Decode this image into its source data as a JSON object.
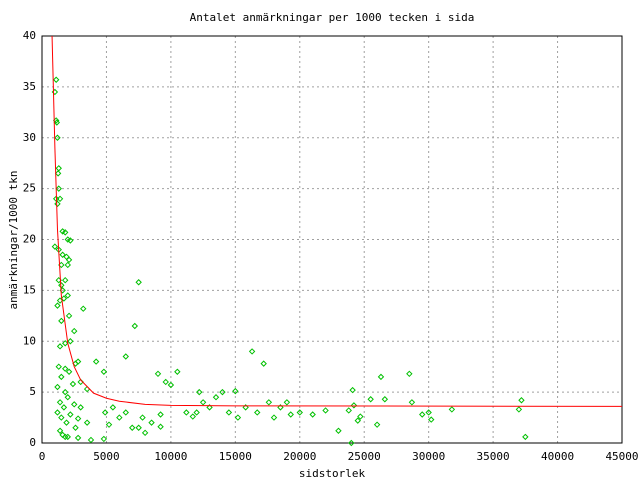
{
  "chart_data": {
    "type": "scatter",
    "title": "Antalet anmärkningar per 1000 tecken i sida",
    "x_label": "sidstorlek",
    "y_label": "anmärkningar/1000 tkn",
    "xlim": [
      0,
      45000
    ],
    "ylim": [
      0,
      40
    ],
    "xticks": [
      0,
      5000,
      10000,
      15000,
      20000,
      25000,
      30000,
      35000,
      40000,
      45000
    ],
    "yticks": [
      0,
      5,
      10,
      15,
      20,
      25,
      30,
      35,
      40
    ],
    "grid": true,
    "series": [
      {
        "style": "points",
        "color": "#00c000",
        "x": [
          1100,
          1000,
          1100,
          1150,
          1200,
          1300,
          1250,
          1300,
          1100,
          1200,
          1400,
          1600,
          1800,
          1000,
          1300,
          2000,
          2200,
          1600,
          1900,
          2100,
          1500,
          2000,
          1300,
          1800,
          1500,
          1600,
          2000,
          1400,
          1700,
          1200,
          3200,
          2100,
          1500,
          2500,
          2200,
          1800,
          1400,
          2800,
          2600,
          1300,
          1800,
          2100,
          1500,
          3000,
          2400,
          1200,
          1800,
          3500,
          2000,
          1400,
          2500,
          1700,
          3000,
          1200,
          2200,
          1500,
          2800,
          1900,
          3500,
          2600,
          1400,
          1600,
          2000,
          2800,
          3800,
          1800,
          4800,
          4200,
          4800,
          6500,
          7200,
          7500,
          9000,
          9600,
          10000,
          10500,
          4900,
          5500,
          6000,
          6500,
          7000,
          7500,
          8000,
          8500,
          9200,
          7800,
          5200,
          11200,
          11700,
          12200,
          12500,
          13000,
          13500,
          14000,
          14500,
          15000,
          15200,
          15800,
          16300,
          16700,
          17200,
          17600,
          18000,
          18500,
          19000,
          19300,
          20000,
          21000,
          22000,
          23000,
          23800,
          24100,
          24200,
          24000,
          24500,
          24700,
          25500,
          26000,
          26300,
          26600,
          28500,
          28700,
          29500,
          30000,
          30200,
          31800,
          37000,
          37200,
          37500,
          9200,
          12000
        ],
        "values": [
          35.7,
          34.5,
          31.7,
          31.5,
          30,
          27,
          26.5,
          25,
          24,
          23.5,
          24,
          20.8,
          20.7,
          19.3,
          19,
          20,
          19.9,
          18.5,
          18.3,
          18,
          17.5,
          17.5,
          16,
          16,
          15.5,
          15,
          14.5,
          14,
          14.2,
          13.5,
          13.2,
          12.5,
          12,
          11,
          10,
          9.8,
          9.5,
          8,
          7.8,
          7.5,
          7.3,
          7,
          6.5,
          6,
          5.8,
          5.5,
          5,
          5.3,
          4.5,
          4,
          3.8,
          3.5,
          3.5,
          3,
          2.8,
          2.5,
          2.4,
          2,
          2,
          1.5,
          1.2,
          0.8,
          0.6,
          0.5,
          0.3,
          0.6,
          0.4,
          8,
          7,
          8.5,
          11.5,
          15.8,
          6.8,
          6,
          5.7,
          7,
          3,
          3.5,
          2.5,
          3,
          1.5,
          1.5,
          1,
          2,
          2.8,
          2.5,
          1.8,
          3,
          2.6,
          5,
          4,
          3.5,
          4.5,
          5,
          3,
          5.1,
          2.5,
          3.5,
          9,
          3,
          7.8,
          4,
          2.5,
          3.5,
          4,
          2.8,
          3,
          2.8,
          3.2,
          1.2,
          3.2,
          5.2,
          3.7,
          0,
          2.2,
          2.6,
          4.3,
          1.8,
          6.5,
          4.3,
          6.8,
          4,
          2.8,
          3,
          2.3,
          3.3,
          3.3,
          4.2,
          0.6,
          1.6,
          3
        ]
      },
      {
        "style": "line",
        "color": "#ff0000",
        "x": [
          780,
          900,
          1000,
          1200,
          1500,
          2000,
          2500,
          3000,
          4000,
          5000,
          6000,
          8000,
          10000,
          15000,
          45000
        ],
        "values": [
          40,
          34,
          29,
          21,
          14.5,
          9.8,
          7.5,
          6.2,
          4.9,
          4.4,
          4.1,
          3.8,
          3.7,
          3.65,
          3.6
        ]
      }
    ]
  }
}
